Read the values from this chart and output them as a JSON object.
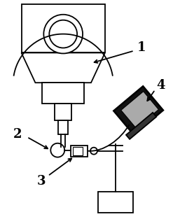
{
  "bg_color": "#ffffff",
  "line_color": "#000000",
  "label_color": "#000000",
  "label_fontsize": 13,
  "fig_width": 2.57,
  "fig_height": 3.13,
  "dpi": 100
}
